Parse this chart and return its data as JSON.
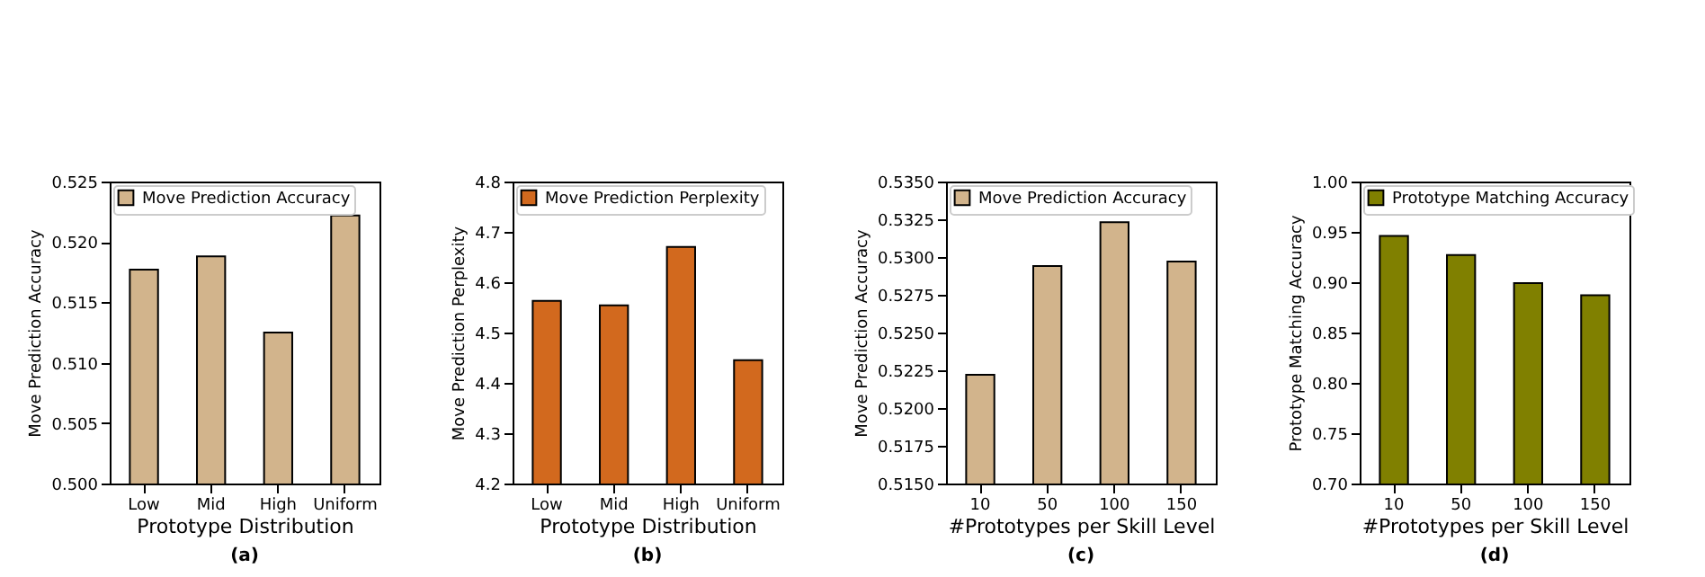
{
  "chart_data": [
    {
      "type": "bar",
      "title": "(a)",
      "xlabel": "Prototype Distribution",
      "ylabel": "Move Prediction Accuracy",
      "categories": [
        "Low",
        "Mid",
        "High",
        "Uniform"
      ],
      "series": [
        {
          "name": "Move Prediction Accuracy",
          "color": "#d2b48c",
          "values": [
            0.5177,
            0.5188,
            0.5125,
            0.5222
          ]
        }
      ],
      "ylim": [
        0.5,
        0.525
      ],
      "yticks": [
        {
          "value": 0.5,
          "label": "0.500"
        },
        0.505,
        {
          "value": 0.51,
          "label": "0.510"
        },
        0.515,
        {
          "value": 0.52,
          "label": "0.520"
        },
        0.525
      ],
      "grid": false,
      "legend": "top left"
    },
    {
      "type": "bar",
      "title": "(b)",
      "xlabel": "Prototype Distribution",
      "ylabel": "Move Prediction Perplexity",
      "categories": [
        "Low",
        "Mid",
        "High",
        "Uniform"
      ],
      "series": [
        {
          "name": "Move Prediction Perplexity",
          "color": "#d2691e",
          "values": [
            4.563,
            4.554,
            4.67,
            4.445
          ]
        }
      ],
      "ylim": [
        4.2,
        4.8
      ],
      "yticks": [
        4.2,
        4.3,
        4.4,
        4.5,
        4.6,
        4.7,
        4.8
      ],
      "grid": false,
      "legend": "top left"
    },
    {
      "type": "bar",
      "title": "(c)",
      "xlabel": "#Prototypes per Skill Level",
      "ylabel": "Move Prediction Accuracy",
      "categories": [
        "10",
        "50",
        "100",
        "150"
      ],
      "series": [
        {
          "name": "Move Prediction Accuracy",
          "color": "#d2b48c",
          "values": [
            0.5222,
            0.5294,
            0.5323,
            0.5297
          ]
        }
      ],
      "ylim": [
        0.515,
        0.535
      ],
      "yticks": [
        {
          "value": 0.515,
          "label": "0.5150"
        },
        {
          "value": 0.5175,
          "label": "0.5175"
        },
        {
          "value": 0.52,
          "label": "0.5200"
        },
        {
          "value": 0.5225,
          "label": "0.5225"
        },
        {
          "value": 0.525,
          "label": "0.5250"
        },
        {
          "value": 0.5275,
          "label": "0.5275"
        },
        {
          "value": 0.53,
          "label": "0.5300"
        },
        {
          "value": 0.5325,
          "label": "0.5325"
        },
        {
          "value": 0.535,
          "label": "0.5350"
        }
      ],
      "grid": false,
      "legend": "top left"
    },
    {
      "type": "bar",
      "title": "(d)",
      "xlabel": "#Prototypes per Skill Level",
      "ylabel": "Prototype Matching Accuracy",
      "categories": [
        "10",
        "50",
        "100",
        "150"
      ],
      "series": [
        {
          "name": "Prototype Matching Accuracy",
          "color": "#808000",
          "values": [
            0.946,
            0.927,
            0.899,
            0.887
          ]
        }
      ],
      "ylim": [
        0.7,
        1.0
      ],
      "yticks": [
        {
          "value": 0.7,
          "label": "0.70"
        },
        0.75,
        {
          "value": 0.8,
          "label": "0.80"
        },
        0.85,
        {
          "value": 0.9,
          "label": "0.90"
        },
        0.95,
        {
          "value": 1.0,
          "label": "1.00"
        }
      ],
      "grid": false,
      "legend": "top left"
    }
  ]
}
